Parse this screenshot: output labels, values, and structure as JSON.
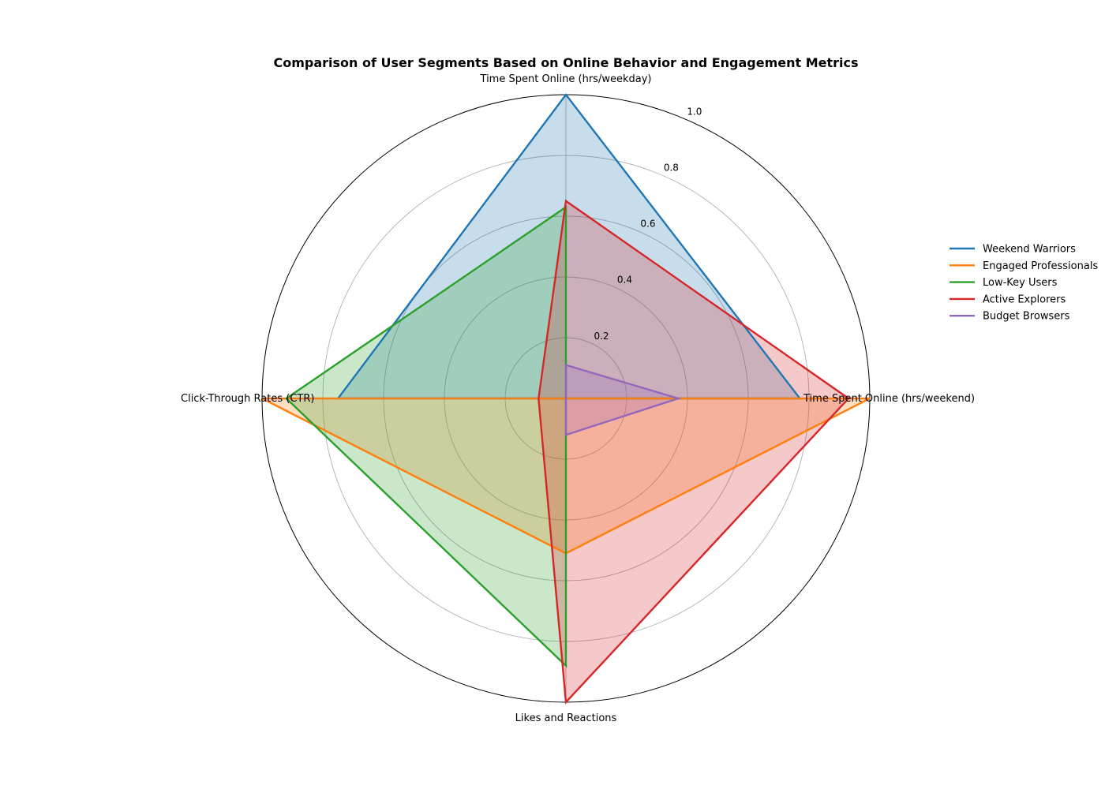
{
  "chart_data": {
    "type": "radar",
    "title": "Comparison of User Segments Based on Online Behavior and Engagement Metrics",
    "axes": [
      "Time Spent Online (hrs/weekday)",
      "Time Spent Online (hrs/weekend)",
      "Likes and Reactions",
      "Click-Through Rates (CTR)"
    ],
    "rlim": [
      0,
      1.0
    ],
    "r_ticks": [
      0.2,
      0.4,
      0.6,
      0.8,
      1.0
    ],
    "r_tick_labels": [
      "0.2",
      "0.4",
      "0.6",
      "0.8",
      "1.0"
    ],
    "grid": true,
    "legend_position": "right",
    "series": [
      {
        "name": "Weekend Warriors",
        "color": "#1f77b4",
        "values": [
          1.0,
          0.77,
          0.0,
          0.75
        ]
      },
      {
        "name": "Engaged Professionals",
        "color": "#ff7f0e",
        "values": [
          0.0,
          1.0,
          0.51,
          1.0
        ]
      },
      {
        "name": "Low-Key Users",
        "color": "#2ca02c",
        "values": [
          0.63,
          0.0,
          0.88,
          0.92
        ]
      },
      {
        "name": "Active Explorers",
        "color": "#d62728",
        "values": [
          0.65,
          0.93,
          1.0,
          0.09
        ]
      },
      {
        "name": "Budget Browsers",
        "color": "#9467bd",
        "values": [
          0.11,
          0.37,
          0.12,
          0.0
        ]
      }
    ]
  }
}
